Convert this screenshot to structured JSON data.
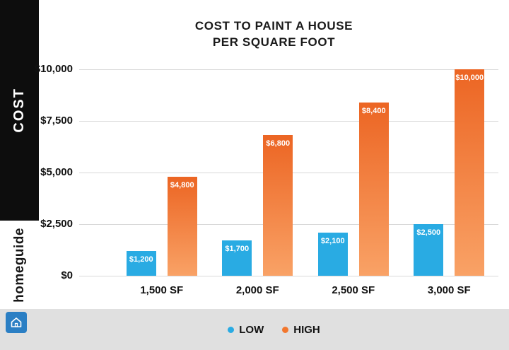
{
  "sidebar": {
    "cost_label": "COST",
    "brand": "homeguide"
  },
  "title": {
    "line1": "COST TO PAINT A HOUSE",
    "line2": "PER SQUARE FOOT"
  },
  "legend": {
    "items": [
      {
        "label": "LOW",
        "color": "#29abe3"
      },
      {
        "label": "HIGH",
        "color": "#f2772e"
      }
    ]
  },
  "chart_data": {
    "type": "bar",
    "title": "COST TO PAINT A HOUSE PER SQUARE FOOT",
    "categories": [
      "1,500 SF",
      "2,000 SF",
      "2,500 SF",
      "3,000 SF"
    ],
    "series": [
      {
        "name": "LOW",
        "color": "#29abe3",
        "values": [
          1200,
          1700,
          2100,
          2500
        ],
        "labels": [
          "$1,200",
          "$1,700",
          "$2,100",
          "$2,500"
        ]
      },
      {
        "name": "HIGH",
        "color_top": "#ec6523",
        "color_bottom": "#f9a266",
        "values": [
          4800,
          6800,
          8400,
          10000
        ],
        "labels": [
          "$4,800",
          "$6,800",
          "$8,400",
          "$10,000"
        ]
      }
    ],
    "xlabel": "",
    "ylabel": "COST",
    "ylim": [
      0,
      10000
    ],
    "yticks": [
      0,
      2500,
      5000,
      7500,
      10000
    ],
    "ytick_labels": [
      "$0",
      "$2,500",
      "$5,000",
      "$7,500",
      "$10,000"
    ],
    "grid": true,
    "legend_position": "bottom"
  }
}
